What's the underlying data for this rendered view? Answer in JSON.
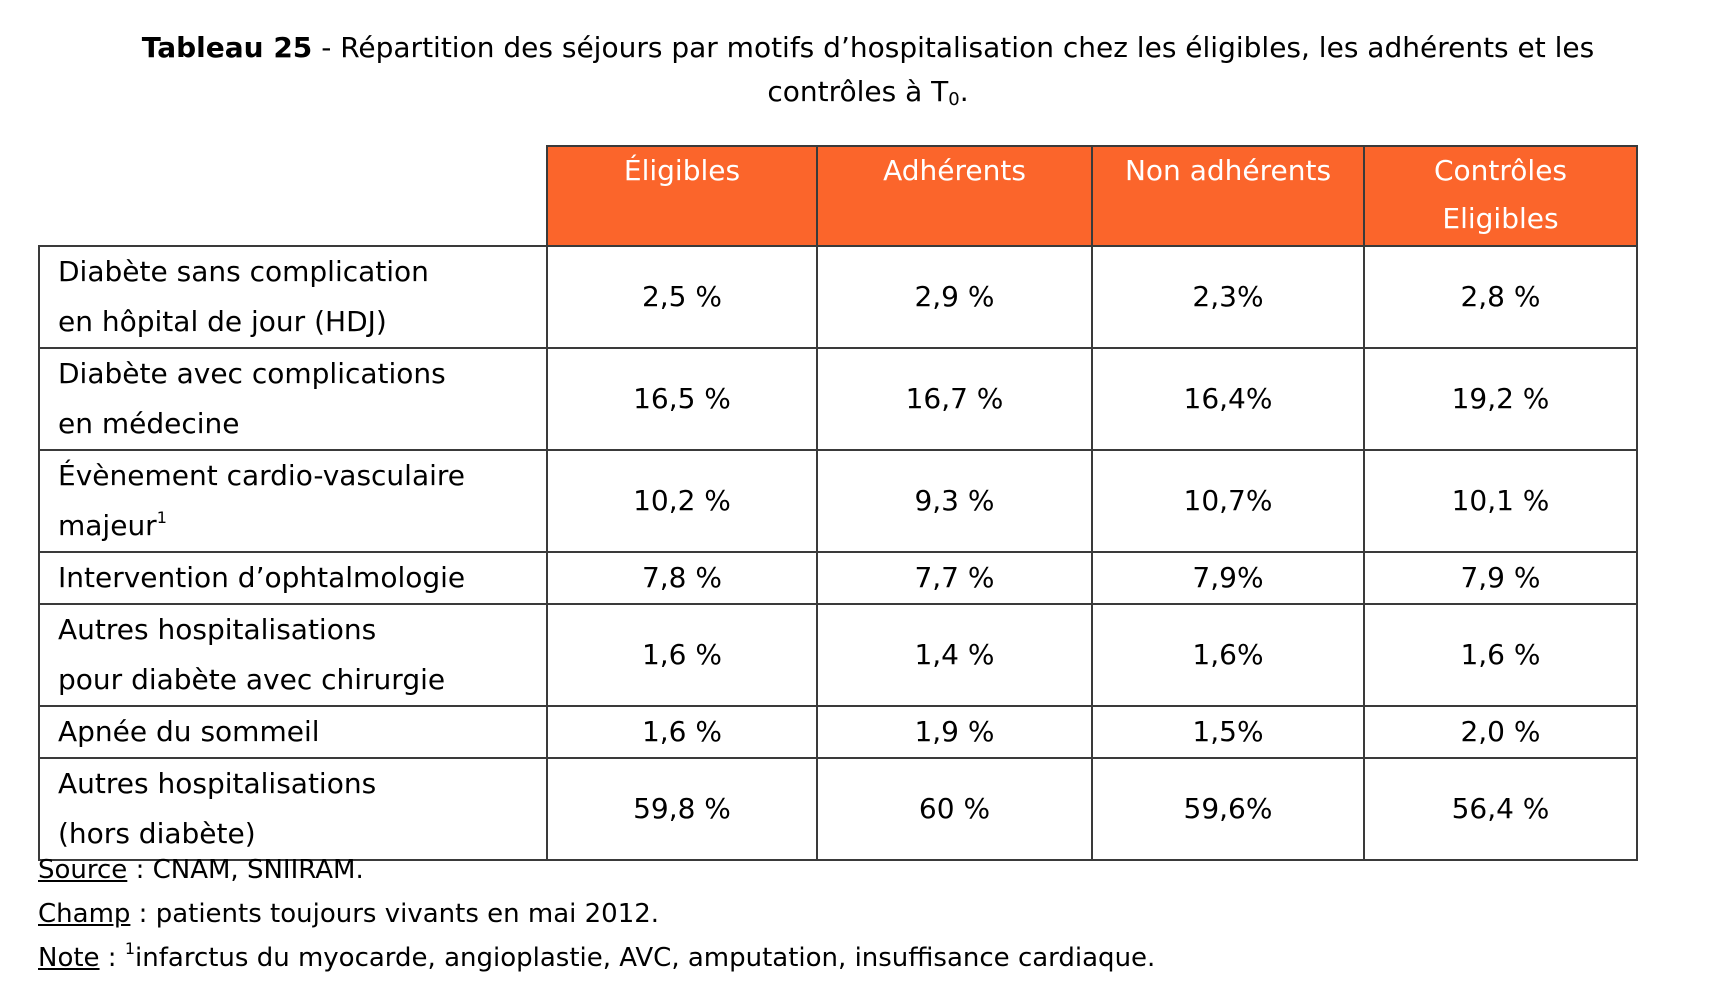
{
  "title": {
    "bold": "Tableau 25",
    "text": " - Répartition des séjours par motifs d’hospitalisation chez les éligibles, les adhérents et les",
    "line2": "contrôles à T",
    "line2_sub": "0",
    "line2_end": "."
  },
  "table": {
    "headers": [
      "Éligibles",
      "Adhérents",
      "Non adhérents",
      "Contrôles",
      "Eligibles"
    ],
    "rows": [
      {
        "label1": "Diabète sans complication",
        "label2": "en hôpital de jour (HDJ)",
        "values": [
          "2,5 %",
          "2,9 %",
          "2,3%",
          "2,8 %"
        ]
      },
      {
        "label1": "Diabète avec complications",
        "label2": "en médecine",
        "values": [
          "16,5 %",
          "16,7 %",
          "16,4%",
          "19,2 %"
        ]
      },
      {
        "label1": "Évènement cardio-vasculaire",
        "label2": "majeur",
        "label2_sup": "1",
        "values": [
          "10,2 %",
          "9,3 %",
          "10,7%",
          "10,1 %"
        ]
      },
      {
        "label1": "Intervention d’ophtalmologie",
        "values": [
          "7,8 %",
          "7,7 %",
          "7,9%",
          "7,9 %"
        ]
      },
      {
        "label1": "Autres hospitalisations",
        "label2": "pour diabète avec chirurgie",
        "values": [
          "1,6 %",
          "1,4 %",
          "1,6%",
          "1,6 %"
        ]
      },
      {
        "label1": "Apnée du sommeil",
        "values": [
          "1,6 %",
          "1,9 %",
          "1,5%",
          "2,0 %"
        ]
      },
      {
        "label1": "Autres hospitalisations",
        "label2": "(hors diabète)",
        "values": [
          "59,8 %",
          "60 %",
          "59,6%",
          "56,4 %"
        ]
      }
    ]
  },
  "notes": {
    "source_label": "Source",
    "source_text": " : CNAM, SNIIRAM.",
    "champ_label": "Champ",
    "champ_text": " : patients toujours vivants en mai 2012.",
    "note_label": "Note",
    "note_sep": " : ",
    "note_sup": "1",
    "note_text": "infarctus du myocarde, angioplastie, AVC, amputation, insuffisance cardiaque."
  },
  "colors": {
    "header_bg": "#FB652B",
    "header_text": "#ffffff",
    "border": "#3a3a3a"
  }
}
